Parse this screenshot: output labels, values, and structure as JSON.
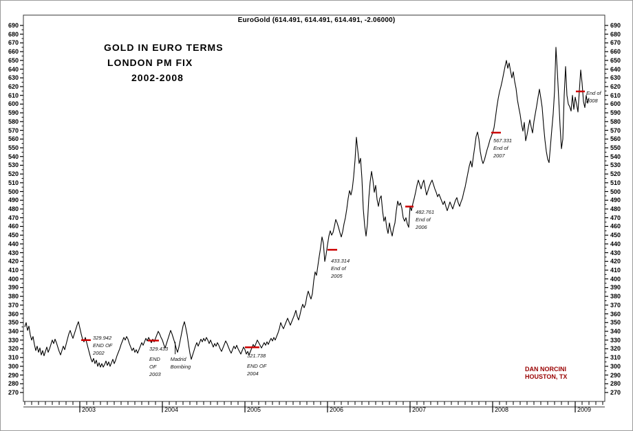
{
  "chart_data": {
    "type": "line",
    "title": "EuroGold (614.491, 614.491, 614.491, -2.06000)",
    "headline": [
      "GOLD IN EURO TERMS",
      "LONDON PM FIX",
      "2002-2008"
    ],
    "watermark": [
      "DAN NORCINI",
      "HOUSTON, TX"
    ],
    "colors": {
      "line": "#000000",
      "frame": "#333333",
      "annotation_tick": "#cc0000",
      "watermark": "#990000"
    },
    "y_axis": {
      "min": 270,
      "max": 690,
      "tick_step": 10,
      "minor_step": 5,
      "labels_both_sides": true
    },
    "x_axis": {
      "year_labels": [
        2003,
        2004,
        2005,
        2006,
        2007,
        2008,
        2009
      ],
      "minor_ticks": "monthly"
    },
    "grid": "off",
    "legend": "none",
    "series": {
      "name": "EuroGold London PM Fix",
      "t_start": 2002.3333,
      "dt": 0.0166667,
      "values": [
        345,
        350,
        341,
        346,
        336,
        330,
        334,
        325,
        318,
        323,
        316,
        321,
        313,
        318,
        312,
        317,
        322,
        316,
        320,
        325,
        330,
        326,
        331,
        327,
        322,
        317,
        313,
        318,
        323,
        319,
        325,
        331,
        337,
        341,
        336,
        332,
        337,
        342,
        347,
        351,
        344,
        337,
        331,
        328,
        333,
        327,
        321,
        315,
        309,
        305,
        309,
        303,
        307,
        300,
        304,
        299,
        303,
        299,
        302,
        306,
        301,
        305,
        300,
        304,
        308,
        303,
        307,
        312,
        316,
        320,
        325,
        329,
        333,
        330,
        334,
        331,
        326,
        322,
        318,
        321,
        316,
        319,
        315,
        319,
        323,
        327,
        324,
        328,
        332,
        329,
        333,
        330,
        327,
        331,
        328,
        332,
        336,
        340,
        337,
        333,
        330,
        325,
        321,
        326,
        331,
        336,
        341,
        337,
        332,
        327,
        321,
        316,
        322,
        330,
        338,
        346,
        351,
        344,
        336,
        325,
        315,
        308,
        313,
        318,
        323,
        327,
        323,
        327,
        331,
        328,
        332,
        329,
        333,
        330,
        326,
        330,
        326,
        322,
        326,
        323,
        327,
        324,
        320,
        317,
        321,
        325,
        329,
        326,
        322,
        318,
        315,
        319,
        323,
        320,
        324,
        320,
        317,
        314,
        318,
        322,
        319,
        314,
        317,
        313,
        317,
        321,
        325,
        322,
        326,
        330,
        327,
        324,
        321,
        324,
        327,
        324,
        328,
        325,
        329,
        332,
        329,
        333,
        330,
        334,
        338,
        343,
        350,
        346,
        343,
        347,
        351,
        355,
        351,
        347,
        351,
        355,
        359,
        364,
        357,
        353,
        359,
        366,
        371,
        367,
        371,
        380,
        386,
        381,
        377,
        383,
        398,
        408,
        404,
        415,
        426,
        436,
        448,
        441,
        420,
        428,
        439,
        449,
        455,
        450,
        453,
        460,
        468,
        464,
        459,
        453,
        448,
        454,
        463,
        470,
        480,
        492,
        501,
        496,
        503,
        517,
        536,
        562,
        547,
        532,
        538,
        515,
        480,
        461,
        449,
        463,
        492,
        511,
        523,
        513,
        499,
        507,
        491,
        483,
        492,
        495,
        478,
        466,
        471,
        459,
        452,
        464,
        455,
        449,
        458,
        464,
        478,
        489,
        484,
        487,
        481,
        470,
        466,
        470,
        463,
        459,
        483,
        478,
        486,
        492,
        499,
        507,
        513,
        508,
        503,
        509,
        513,
        504,
        496,
        501,
        506,
        510,
        513,
        508,
        503,
        499,
        494,
        497,
        493,
        489,
        485,
        489,
        483,
        478,
        483,
        488,
        484,
        480,
        485,
        490,
        493,
        487,
        483,
        488,
        492,
        499,
        505,
        513,
        521,
        529,
        535,
        528,
        540,
        551,
        563,
        568,
        560,
        546,
        537,
        532,
        536,
        542,
        548,
        553,
        559,
        563,
        567,
        573,
        584,
        596,
        606,
        614,
        620,
        627,
        635,
        643,
        650,
        641,
        647,
        638,
        630,
        637,
        626,
        618,
        605,
        596,
        588,
        577,
        569,
        579,
        558,
        565,
        574,
        582,
        574,
        567,
        580,
        589,
        598,
        608,
        617,
        607,
        596,
        576,
        559,
        546,
        537,
        533,
        552,
        571,
        589,
        615,
        665,
        638,
        607,
        575,
        549,
        560,
        610,
        643,
        610,
        600,
        597,
        592,
        610,
        594,
        608,
        600,
        591,
        615,
        639,
        624,
        603,
        596,
        610,
        601,
        607
      ]
    },
    "annotations": [
      {
        "id": "end-2002",
        "value": 329.942,
        "t1": 2003.017,
        "t2": 2003.133,
        "lines": [
          "329.942",
          "END OF",
          "2002"
        ],
        "label_offset": [
          17,
          -9
        ]
      },
      {
        "id": "end-2003",
        "value": 329.433,
        "t1": 2003.825,
        "t2": 2003.958,
        "lines": [
          "329.433",
          "END",
          "OF",
          "2003"
        ],
        "label_offset": [
          2,
          7
        ],
        "gap_after_first": true
      },
      {
        "id": "madrid-bombing",
        "type": "event",
        "t": 2004.155,
        "pointer_from_value": 328,
        "lines": [
          "Madrid",
          "Bombing"
        ]
      },
      {
        "id": "end-2004",
        "value": 321.738,
        "t1": 2005.0,
        "t2": 2005.175,
        "lines": [
          "321.738",
          "END OF",
          "2004"
        ],
        "label_offset": [
          3,
          7
        ],
        "gap_after_first": true
      },
      {
        "id": "end-2005",
        "value": 433.314,
        "t1": 2006.0,
        "t2": 2006.117,
        "lines": [
          "433.314",
          "End of",
          "2005"
        ],
        "label_offset": [
          5,
          11
        ]
      },
      {
        "id": "end-2006",
        "value": 482.761,
        "t1": 2006.942,
        "t2": 2007.042,
        "lines": [
          "482.761",
          "End of",
          "2006"
        ],
        "label_offset": [
          15,
          3
        ]
      },
      {
        "id": "end-2007",
        "value": 567.331,
        "t1": 2007.983,
        "t2": 2008.1,
        "lines": [
          "567.331",
          "End of",
          "2007"
        ],
        "label_offset": [
          3,
          6
        ]
      },
      {
        "id": "end-2008",
        "value": 614.491,
        "t1": 2009.008,
        "t2": 2009.117,
        "lines": [
          "End of",
          "2008"
        ],
        "label_offset": [
          15,
          -3
        ]
      }
    ]
  }
}
